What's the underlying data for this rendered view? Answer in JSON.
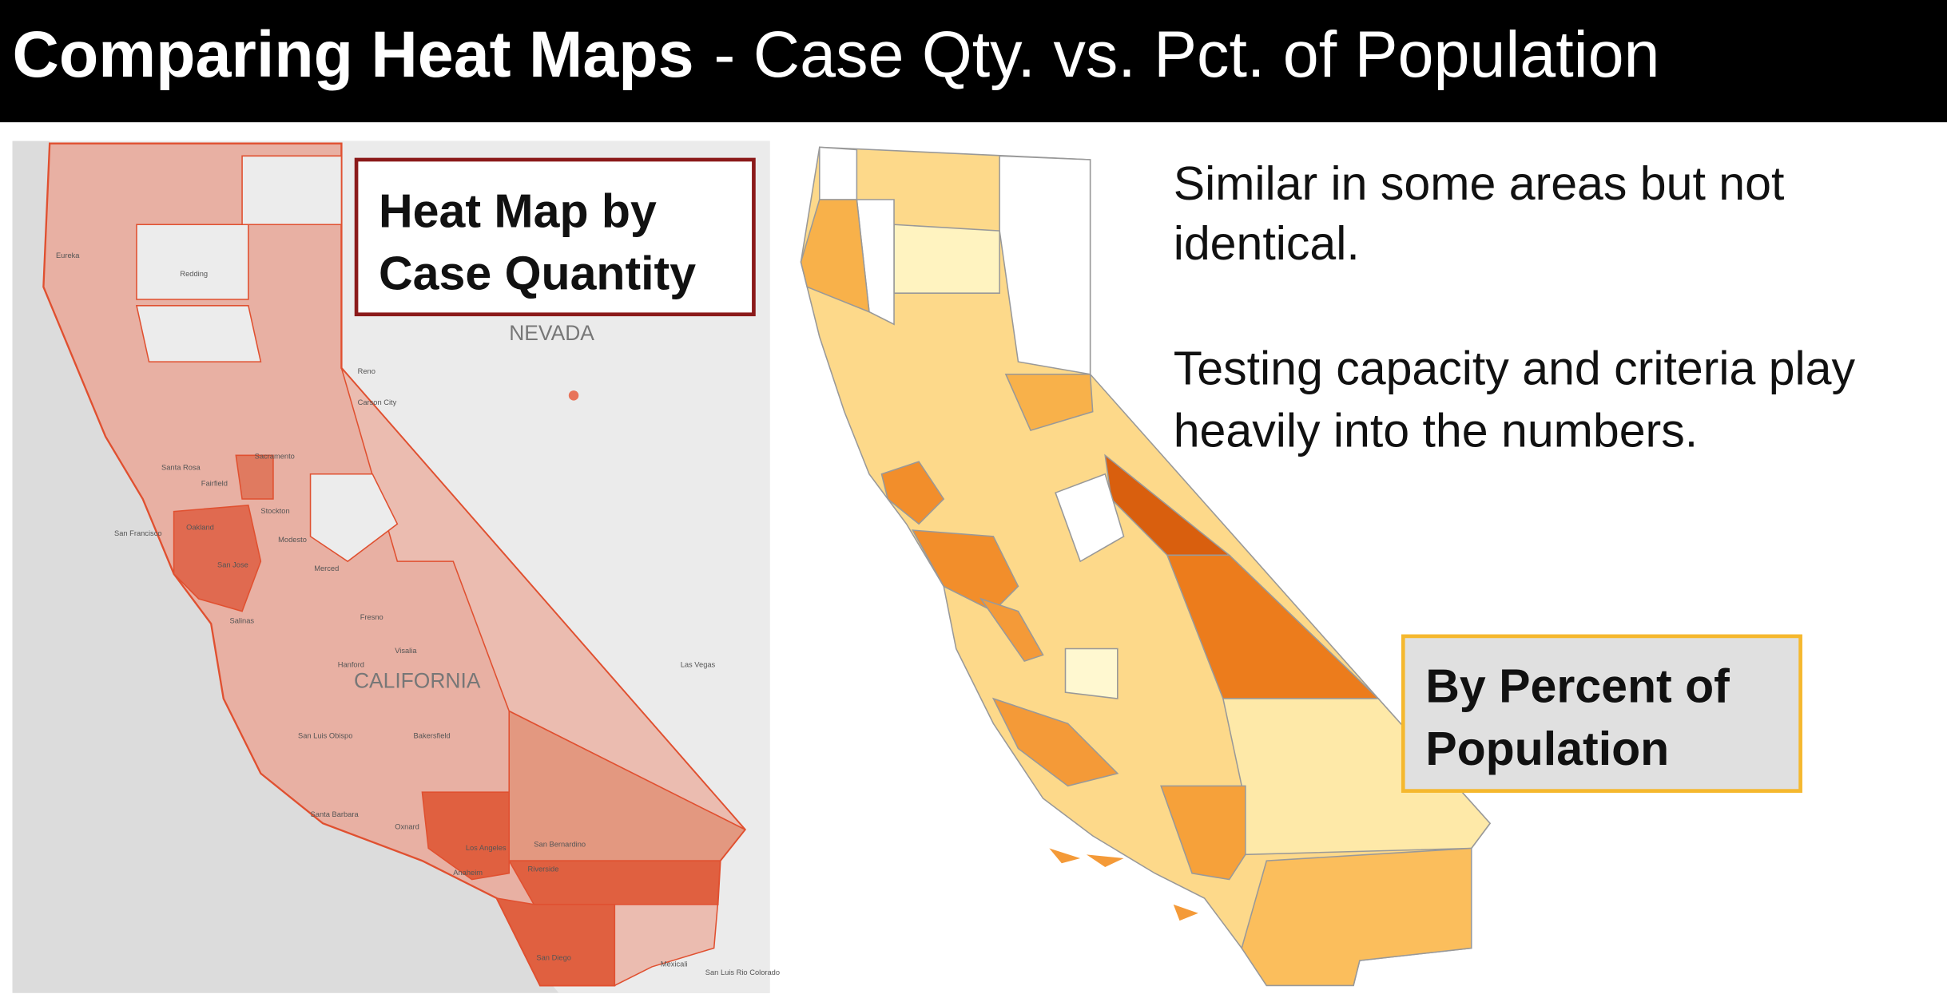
{
  "header": {
    "title_bold": "Comparing Heat Maps",
    "title_rest": "- Case Qty. vs. Pct. of Population"
  },
  "left_map": {
    "label": [
      "Heat Map by",
      "Case Quantity"
    ],
    "regions": [
      "NEVADA",
      "CALIFORNIA"
    ],
    "places": [
      "Eureka",
      "Redding",
      "Reno",
      "Carson City",
      "Santa Rosa",
      "Fairfield",
      "Sacramento",
      "Stockton",
      "San Francisco",
      "Oakland",
      "San Jose",
      "Modesto",
      "Merced",
      "Fresno",
      "Salinas",
      "Visalia",
      "Hanford",
      "Las Vegas",
      "San Luis Obispo",
      "Bakersfield",
      "Santa Barbara",
      "Oxnard",
      "Los Angeles",
      "Anaheim",
      "Riverside",
      "San Bernardino",
      "San Diego",
      "Mexicali",
      "San Luis Rio Colorado"
    ]
  },
  "right_text": {
    "paragraphs": [
      [
        "Similar in some areas but not",
        "identical."
      ],
      [
        "Testing capacity and criteria play",
        "heavily into the numbers."
      ]
    ]
  },
  "right_map": {
    "label": [
      "By Percent of",
      "Population"
    ]
  }
}
